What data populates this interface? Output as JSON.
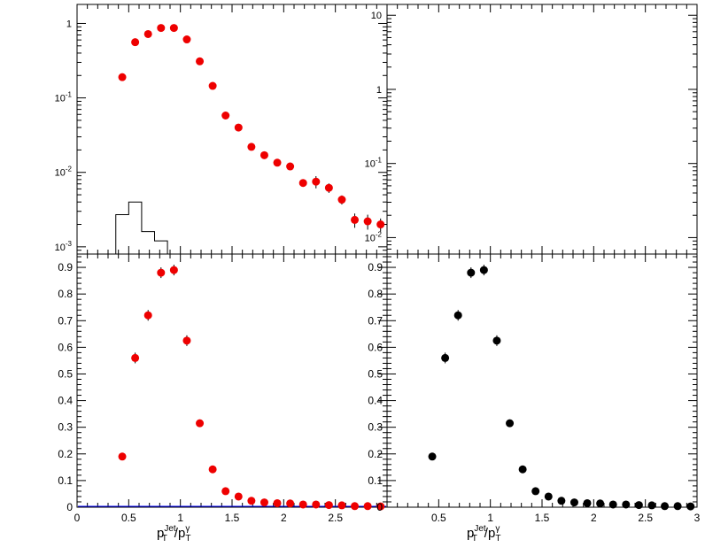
{
  "chart_data": [
    {
      "id": "top-left",
      "type": "scatter",
      "log_y": true,
      "xlim": [
        0,
        3
      ],
      "ylim": [
        0.0008,
        1.8
      ],
      "y_tick_labels": [
        {
          "value": 1,
          "base": "1",
          "exp": ""
        },
        {
          "value": 0.1,
          "base": "10",
          "exp": "-1"
        },
        {
          "value": 0.01,
          "base": "10",
          "exp": "-2"
        },
        {
          "value": 0.001,
          "base": "10",
          "exp": "-3"
        }
      ],
      "marker_color": "#ee0000",
      "x": [
        0.4375,
        0.5625,
        0.6875,
        0.8125,
        0.9375,
        1.0625,
        1.1875,
        1.3125,
        1.4375,
        1.5625,
        1.6875,
        1.8125,
        1.9375,
        2.0625,
        2.1875,
        2.3125,
        2.4375,
        2.5625,
        2.6875,
        2.8125,
        2.9375
      ],
      "y": [
        0.19,
        0.56,
        0.72,
        0.87,
        0.87,
        0.61,
        0.31,
        0.145,
        0.058,
        0.04,
        0.022,
        0.017,
        0.0135,
        0.012,
        0.0072,
        0.0075,
        0.0062,
        0.0043,
        0.0023,
        0.0022,
        0.002
      ],
      "yerr": [
        0.015,
        0.03,
        0.03,
        0.03,
        0.03,
        0.03,
        0.015,
        0.008,
        0.004,
        0.003,
        0.0015,
        0.0012,
        0.001,
        0.001,
        0.0008,
        0.0014,
        0.0009,
        0.0006,
        0.0005,
        0.0005,
        0.0004
      ],
      "histogram": {
        "color": "#000000",
        "bins": [
          [
            0.375,
            0.5,
            0.0027
          ],
          [
            0.5,
            0.625,
            0.004
          ],
          [
            0.625,
            0.75,
            0.0016
          ],
          [
            0.75,
            0.875,
            0.0012
          ]
        ]
      }
    },
    {
      "id": "top-right",
      "type": "scatter",
      "log_y": true,
      "xlim": [
        0,
        3
      ],
      "ylim": [
        0.006,
        14
      ],
      "y_tick_labels": [
        {
          "value": 10,
          "base": "10",
          "exp": ""
        },
        {
          "value": 1,
          "base": "1",
          "exp": ""
        },
        {
          "value": 0.1,
          "base": "10",
          "exp": "-1"
        },
        {
          "value": 0.01,
          "base": "10",
          "exp": "-2"
        }
      ],
      "x": [],
      "y": []
    },
    {
      "id": "bottom-left",
      "type": "scatter",
      "xlim": [
        0,
        3
      ],
      "ylim": [
        0,
        0.95
      ],
      "y_ticks": [
        0,
        0.1,
        0.2,
        0.3,
        0.4,
        0.5,
        0.6,
        0.7,
        0.8,
        0.9
      ],
      "x_ticks": [
        0,
        0.5,
        1,
        1.5,
        2,
        2.5
      ],
      "xlabel": "p_T^Jet/p_T^γ",
      "xlabel_parts": {
        "p": "p",
        "sub": "T",
        "sup1": "Jet",
        "slash": "/p",
        "sup2": "γ"
      },
      "marker_color": "#ee0000",
      "baseline_color": "#0000ff",
      "x": [
        0.4375,
        0.5625,
        0.6875,
        0.8125,
        0.9375,
        1.0625,
        1.1875,
        1.3125,
        1.4375,
        1.5625,
        1.6875,
        1.8125,
        1.9375,
        2.0625,
        2.1875,
        2.3125,
        2.4375,
        2.5625,
        2.6875,
        2.8125,
        2.9375
      ],
      "y": [
        0.19,
        0.56,
        0.72,
        0.88,
        0.89,
        0.625,
        0.315,
        0.142,
        0.06,
        0.04,
        0.024,
        0.018,
        0.015,
        0.014,
        0.01,
        0.01,
        0.008,
        0.007,
        0.004,
        0.004,
        0.003
      ],
      "yerr": [
        0.012,
        0.02,
        0.02,
        0.02,
        0.02,
        0.02,
        0.012,
        0.008,
        0.005,
        0.004,
        0.003,
        0.003,
        0.002,
        0.002,
        0.002,
        0.002,
        0.002,
        0.002,
        0.001,
        0.001,
        0.001
      ]
    },
    {
      "id": "bottom-right",
      "type": "scatter",
      "xlim": [
        0,
        3
      ],
      "ylim": [
        0,
        0.95
      ],
      "y_ticks": [
        0,
        0.1,
        0.2,
        0.3,
        0.4,
        0.5,
        0.6,
        0.7,
        0.8,
        0.9
      ],
      "x_ticks": [
        0.5,
        1,
        1.5,
        2,
        2.5,
        3
      ],
      "xlabel": "p_T^Jet/p_T^γ",
      "xlabel_parts": {
        "p": "p",
        "sub": "T",
        "sup1": "Jet",
        "slash": "/p",
        "sup2": "γ"
      },
      "marker_color": "#000000",
      "x": [
        0.4375,
        0.5625,
        0.6875,
        0.8125,
        0.9375,
        1.0625,
        1.1875,
        1.3125,
        1.4375,
        1.5625,
        1.6875,
        1.8125,
        1.9375,
        2.0625,
        2.1875,
        2.3125,
        2.4375,
        2.5625,
        2.6875,
        2.8125,
        2.9375
      ],
      "y": [
        0.19,
        0.56,
        0.72,
        0.88,
        0.89,
        0.625,
        0.315,
        0.142,
        0.06,
        0.04,
        0.024,
        0.018,
        0.015,
        0.014,
        0.01,
        0.01,
        0.008,
        0.007,
        0.004,
        0.004,
        0.003
      ],
      "yerr": [
        0.012,
        0.02,
        0.02,
        0.02,
        0.02,
        0.02,
        0.012,
        0.008,
        0.005,
        0.004,
        0.003,
        0.003,
        0.002,
        0.002,
        0.002,
        0.002,
        0.002,
        0.002,
        0.001,
        0.001,
        0.001
      ]
    }
  ]
}
